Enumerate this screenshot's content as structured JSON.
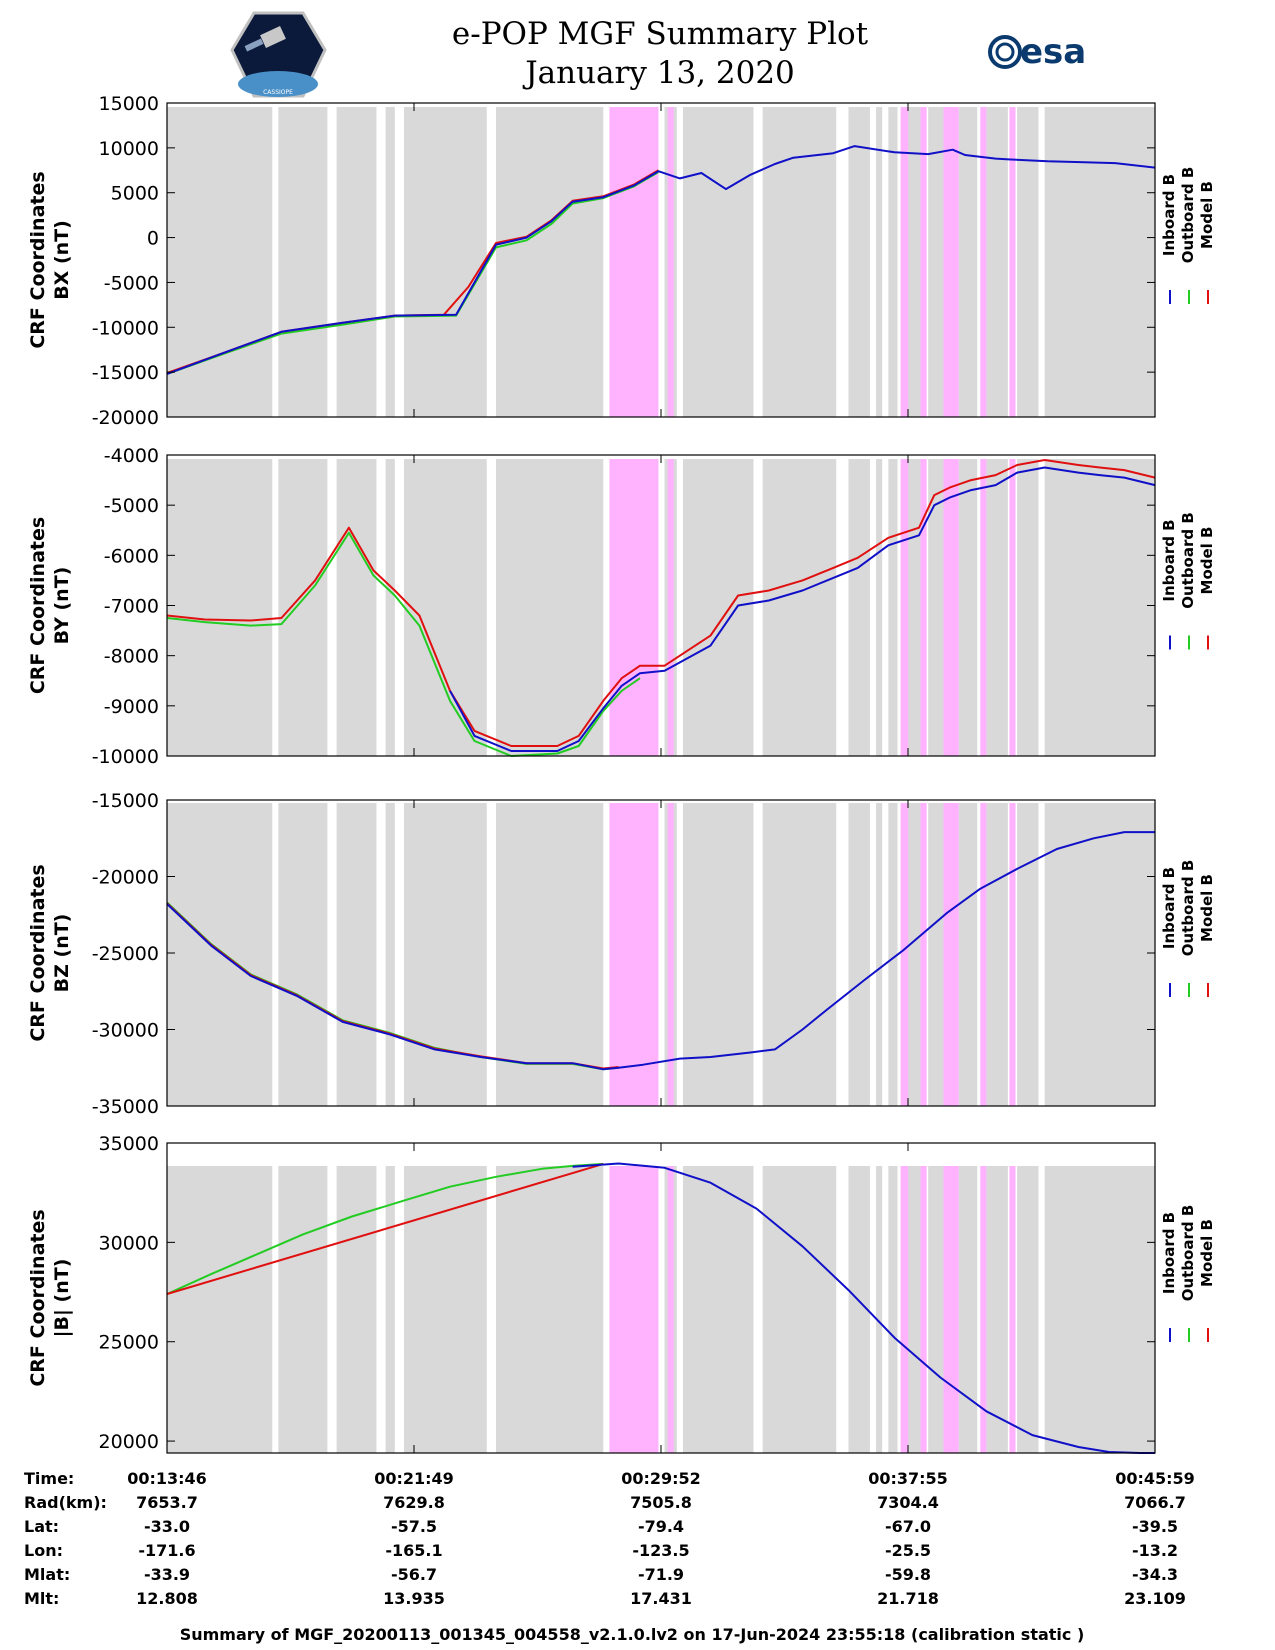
{
  "header": {
    "title": "e-POP MGF Summary Plot",
    "date": "January 13, 2020",
    "logo_left_text": "CASSIOPE",
    "logo_right_text": "esa"
  },
  "colors": {
    "inboard": "#1010c8",
    "outboard": "#22cc22",
    "model": "#e01010",
    "gap": "#d9d9d9",
    "pink": "#ffb3ff"
  },
  "legend": [
    "Inboard B",
    "Outboard B",
    "Model B"
  ],
  "time_axis": {
    "start_min": 13.767,
    "end_min": 46.0
  },
  "bands": {
    "gray": [
      [
        13.77,
        17.2
      ],
      [
        17.4,
        19.0
      ],
      [
        19.3,
        20.6
      ],
      [
        20.9,
        21.2
      ],
      [
        21.5,
        24.2
      ],
      [
        24.5,
        28.0
      ],
      [
        30.0,
        30.4
      ],
      [
        30.6,
        32.9
      ],
      [
        33.2,
        35.6
      ],
      [
        36.0,
        36.7
      ],
      [
        36.9,
        37.1
      ],
      [
        37.3,
        37.6
      ],
      [
        37.8,
        38.4
      ],
      [
        38.6,
        39.2
      ],
      [
        39.6,
        40.2
      ],
      [
        40.5,
        41.2
      ],
      [
        41.5,
        42.2
      ],
      [
        42.4,
        46.0
      ]
    ],
    "pink": [
      [
        28.2,
        29.8
      ],
      [
        30.1,
        30.3
      ],
      [
        37.7,
        37.95
      ],
      [
        38.35,
        38.55
      ],
      [
        39.1,
        39.6
      ],
      [
        40.3,
        40.5
      ],
      [
        41.25,
        41.45
      ]
    ]
  },
  "time_map": {
    "note": "Time of day shown on x-axis"
  },
  "table": {
    "row_labels": [
      "Time:",
      "Rad(km):",
      "Lat:",
      "Lon:",
      "Mlat:",
      "Mlt:"
    ],
    "columns": [
      [
        "00:13:46",
        "7653.7",
        "-33.0",
        "-171.6",
        "-33.9",
        "12.808"
      ],
      [
        "00:21:49",
        "7629.8",
        "-57.5",
        "-165.1",
        "-56.7",
        "13.935"
      ],
      [
        "00:29:52",
        "7505.8",
        "-79.4",
        "-123.5",
        "-71.9",
        "17.431"
      ],
      [
        "00:37:55",
        "7304.4",
        "-67.0",
        "-25.5",
        "-59.8",
        "21.718"
      ],
      [
        "00:45:59",
        "7066.7",
        "-39.5",
        "-13.2",
        "-34.3",
        "23.109"
      ]
    ]
  },
  "footer": "Summary of MGF_20200113_001345_004558_v2.1.0.lv2 on 17-Jun-2024 23:55:18 (calibration static )",
  "chart_data": [
    {
      "type": "line",
      "title": "",
      "ylabel": [
        "CRF Coordinates",
        "BX (nT)"
      ],
      "ylim": [
        -20000,
        15000
      ],
      "yticks": [
        -20000,
        -15000,
        -10000,
        -5000,
        0,
        5000,
        10000,
        15000
      ],
      "series": [
        {
          "name": "Inboard B",
          "x": [
            13.77,
            15.5,
            17.5,
            19.5,
            21.2,
            23.2,
            24.5,
            25.5,
            26.3,
            27.0,
            28.0,
            29.0,
            29.8,
            30.5,
            31.2,
            32.0,
            32.8,
            33.6,
            34.2,
            35.5,
            36.2,
            37.5,
            38.6,
            39.4,
            39.8,
            40.8,
            41.3,
            42.5,
            43.7,
            44.7,
            46.0
          ],
          "values": [
            -15200,
            -13000,
            -10500,
            -9500,
            -8700,
            -8600,
            -800,
            0,
            1800,
            4000,
            4500,
            5800,
            7400,
            6600,
            7200,
            5400,
            7000,
            8200,
            8900,
            9400,
            10200,
            9500,
            9300,
            9800,
            9200,
            8800,
            8700,
            8500,
            8400,
            8300,
            7800
          ]
        },
        {
          "name": "Outboard B",
          "x": [
            13.77,
            15.5,
            17.5,
            19.5,
            21.2,
            23.2,
            24.5,
            25.5,
            26.3,
            27.0,
            28.0,
            29.0,
            29.8
          ],
          "values": [
            -15200,
            -13100,
            -10700,
            -9700,
            -8800,
            -8700,
            -1100,
            -300,
            1500,
            3800,
            4400,
            5700,
            7300
          ]
        },
        {
          "name": "Model B",
          "x": [
            13.77,
            15.5,
            17.5,
            19.5,
            21.2,
            22.8,
            23.6,
            24.5,
            25.5,
            26.3,
            27.0,
            28.0,
            29.0,
            29.8
          ],
          "values": [
            -15100,
            -13000,
            -10500,
            -9500,
            -8700,
            -8600,
            -5500,
            -600,
            100,
            1900,
            4100,
            4600,
            5900,
            7500
          ]
        }
      ]
    },
    {
      "type": "line",
      "title": "",
      "ylabel": [
        "CRF Coordinates",
        "BY (nT)"
      ],
      "ylim": [
        -10000,
        -4000
      ],
      "yticks": [
        -10000,
        -9000,
        -8000,
        -7000,
        -6000,
        -5000,
        -4000
      ],
      "series": [
        {
          "name": "Inboard B",
          "x": [
            23.0,
            23.8,
            25.0,
            26.5,
            27.2,
            28.0,
            28.6,
            29.2,
            30.0,
            31.5,
            32.4,
            33.4,
            34.5,
            35.5,
            36.3,
            37.3,
            38.3,
            38.8,
            39.3,
            40.0,
            40.8,
            41.5,
            42.4,
            43.5,
            44.2,
            45.0,
            46.0
          ],
          "values": [
            -8700,
            -9600,
            -9900,
            -9900,
            -9700,
            -9050,
            -8600,
            -8350,
            -8300,
            -7800,
            -7000,
            -6900,
            -6700,
            -6450,
            -6250,
            -5800,
            -5600,
            -5000,
            -4850,
            -4700,
            -4600,
            -4350,
            -4250,
            -4350,
            -4400,
            -4450,
            -4600
          ]
        },
        {
          "name": "Outboard B",
          "x": [
            13.77,
            15.0,
            16.5,
            17.5,
            18.6,
            19.7,
            20.5,
            21.2,
            22.0,
            23.0,
            23.8,
            25.0,
            26.5,
            27.2,
            28.0,
            28.6,
            29.2
          ],
          "values": [
            -7250,
            -7330,
            -7400,
            -7370,
            -6600,
            -5550,
            -6400,
            -6800,
            -7400,
            -8900,
            -9700,
            -10000,
            -9950,
            -9800,
            -9100,
            -8700,
            -8450
          ]
        },
        {
          "name": "Model B",
          "x": [
            13.77,
            15.0,
            16.5,
            17.5,
            18.6,
            19.7,
            20.5,
            21.2,
            22.0,
            23.0,
            23.8,
            25.0,
            26.5,
            27.2,
            28.0,
            28.6,
            29.2,
            30.0,
            31.5,
            32.4,
            33.4,
            34.5,
            35.5,
            36.3,
            37.3,
            38.3,
            38.8,
            39.3,
            40.0,
            40.8,
            41.5,
            42.4,
            43.5,
            44.2,
            45.0,
            46.0
          ],
          "values": [
            -7200,
            -7280,
            -7300,
            -7250,
            -6500,
            -5450,
            -6300,
            -6700,
            -7200,
            -8700,
            -9500,
            -9800,
            -9800,
            -9600,
            -8900,
            -8450,
            -8200,
            -8200,
            -7600,
            -6800,
            -6700,
            -6500,
            -6250,
            -6050,
            -5650,
            -5450,
            -4800,
            -4650,
            -4500,
            -4400,
            -4200,
            -4100,
            -4200,
            -4250,
            -4300,
            -4450
          ]
        }
      ]
    },
    {
      "type": "line",
      "title": "",
      "ylabel": [
        "CRF Coordinates",
        "BZ (nT)"
      ],
      "ylim": [
        -35000,
        -15000
      ],
      "yticks": [
        -35000,
        -30000,
        -25000,
        -20000,
        -15000
      ],
      "series": [
        {
          "name": "Inboard B",
          "x": [
            13.77,
            15.2,
            16.5,
            18.0,
            19.5,
            21.0,
            22.5,
            24.0,
            25.5,
            27.0,
            28.0,
            28.5,
            29.3,
            30.5,
            31.5,
            32.8,
            33.6,
            34.5,
            35.3,
            36.5,
            37.8,
            39.2,
            40.3,
            41.5,
            42.8,
            44.0,
            45.0,
            46.0
          ],
          "values": [
            -21800,
            -24500,
            -26500,
            -27800,
            -29500,
            -30300,
            -31300,
            -31800,
            -32200,
            -32200,
            -32600,
            -32500,
            -32300,
            -31900,
            -31800,
            -31500,
            -31300,
            -30000,
            -28700,
            -26800,
            -24800,
            -22400,
            -20800,
            -19500,
            -18200,
            -17500,
            -17100,
            -17100
          ]
        },
        {
          "name": "Outboard B",
          "x": [
            13.77,
            15.2,
            16.5,
            18.0,
            19.5,
            21.0,
            22.5,
            24.0,
            25.5,
            27.0,
            28.0,
            28.5
          ],
          "values": [
            -21700,
            -24400,
            -26400,
            -27700,
            -29400,
            -30200,
            -31200,
            -31800,
            -32250,
            -32250,
            -32600,
            -32500
          ]
        },
        {
          "name": "Model B",
          "x": [
            13.77,
            15.2,
            16.5,
            18.0,
            19.5,
            21.0,
            22.5,
            24.0,
            25.5,
            27.0,
            28.0,
            28.5
          ],
          "values": [
            -21750,
            -24450,
            -26450,
            -27750,
            -29450,
            -30250,
            -31250,
            -31750,
            -32200,
            -32200,
            -32550,
            -32450
          ]
        }
      ]
    },
    {
      "type": "line",
      "title": "",
      "ylabel": [
        "CRF Coordinates",
        "|B| (nT)"
      ],
      "ylim": [
        19400,
        35000
      ],
      "yticks": [
        20000,
        25000,
        30000,
        35000
      ],
      "series": [
        {
          "name": "Inboard B",
          "x": [
            27.0,
            28.5,
            30.0,
            31.5,
            33.0,
            34.5,
            36.0,
            37.5,
            39.0,
            40.5,
            42.0,
            43.5,
            44.5,
            45.5,
            46.0
          ],
          "values": [
            33800,
            33970,
            33750,
            33000,
            31700,
            29800,
            27600,
            25200,
            23200,
            21500,
            20300,
            19700,
            19450,
            19400,
            19400
          ]
        },
        {
          "name": "Outboard B",
          "x": [
            13.77,
            15.2,
            16.7,
            18.2,
            19.8,
            21.5,
            23.0,
            24.5,
            26.0,
            27.0,
            28.0
          ],
          "values": [
            27400,
            28400,
            29400,
            30400,
            31300,
            32100,
            32800,
            33300,
            33700,
            33850,
            33950
          ]
        },
        {
          "name": "Model B",
          "x": [
            13.77,
            28.0
          ],
          "values": [
            27400,
            33950
          ]
        }
      ]
    }
  ]
}
